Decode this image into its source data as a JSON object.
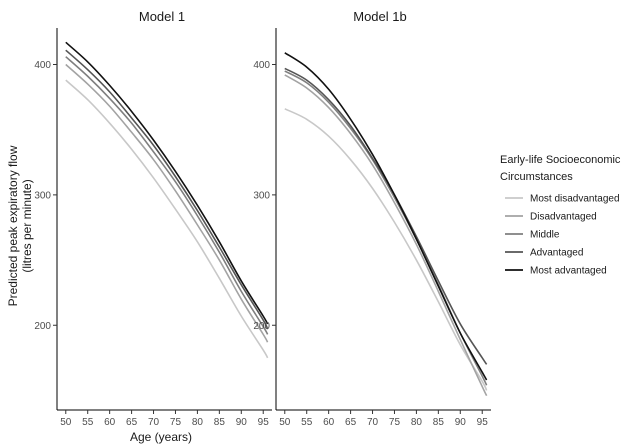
{
  "chart_data": {
    "type": "line",
    "ylabel_line1": "Predicted peak expiratory flow",
    "ylabel_line2": "(litres per minute)",
    "xlabel": "Age (years)",
    "xlim": [
      48,
      97
    ],
    "ylim": [
      135,
      428
    ],
    "x_ticks": [
      50,
      55,
      60,
      65,
      70,
      75,
      80,
      85,
      90,
      95
    ],
    "y_ticks": [
      200,
      300,
      400
    ],
    "grid": false,
    "legend": {
      "title_line1": "Early-life Socioeconomic",
      "title_line2": "Circumstances",
      "placement": "right",
      "entries": [
        {
          "label": "Most disadvantaged",
          "color": "#c8c8c8"
        },
        {
          "label": "Disadvantaged",
          "color": "#a3a3a3"
        },
        {
          "label": "Middle",
          "color": "#7f7f7f"
        },
        {
          "label": "Advantaged",
          "color": "#555555"
        },
        {
          "label": "Most advantaged",
          "color": "#111111"
        }
      ]
    },
    "panels": [
      {
        "title": "Model 1",
        "series": [
          {
            "name": "Most disadvantaged",
            "color": "#c8c8c8",
            "x": [
              50,
              55,
              60,
              65,
              70,
              75,
              80,
              85,
              90,
              95,
              96
            ],
            "y": [
              388,
              373,
              355,
              335,
              313,
              289,
              264,
              236,
              207,
              181,
              175
            ]
          },
          {
            "name": "Disadvantaged",
            "color": "#a3a3a3",
            "x": [
              50,
              55,
              60,
              65,
              70,
              75,
              80,
              85,
              90,
              95,
              96
            ],
            "y": [
              400,
              385,
              368,
              348,
              327,
              303,
              277,
              250,
              220,
              193,
              187
            ]
          },
          {
            "name": "Middle",
            "color": "#7f7f7f",
            "x": [
              50,
              55,
              60,
              65,
              70,
              75,
              80,
              85,
              90,
              95,
              96
            ],
            "y": [
              406,
              391,
              374,
              355,
              333,
              310,
              284,
              256,
              226,
              199,
              193
            ]
          },
          {
            "name": "Advantaged",
            "color": "#555555",
            "x": [
              50,
              55,
              60,
              65,
              70,
              75,
              80,
              85,
              90,
              95,
              96
            ],
            "y": [
              411,
              396,
              379,
              359,
              338,
              314,
              288,
              260,
              231,
              204,
              197
            ]
          },
          {
            "name": "Most advantaged",
            "color": "#111111",
            "x": [
              50,
              55,
              60,
              65,
              70,
              75,
              80,
              85,
              90,
              95,
              96
            ],
            "y": [
              417,
              402,
              384,
              364,
              342,
              318,
              292,
              264,
              234,
              207,
              201
            ]
          }
        ]
      },
      {
        "title": "Model 1b",
        "series": [
          {
            "name": "Most disadvantaged",
            "color": "#c8c8c8",
            "x": [
              50,
              55,
              60,
              65,
              70,
              75,
              80,
              85,
              90,
              95,
              96
            ],
            "y": [
              366,
              358,
              345,
              327,
              305,
              279,
              250,
              218,
              185,
              157,
              150
            ]
          },
          {
            "name": "Disadvantaged",
            "color": "#a3a3a3",
            "x": [
              50,
              55,
              60,
              65,
              70,
              75,
              80,
              85,
              90,
              95,
              96
            ],
            "y": [
              392,
              382,
              367,
              347,
              323,
              294,
              262,
              226,
              189,
              153,
              146
            ]
          },
          {
            "name": "Middle",
            "color": "#7f7f7f",
            "x": [
              50,
              55,
              60,
              65,
              70,
              75,
              80,
              85,
              90,
              95,
              96
            ],
            "y": [
              395,
              386,
              371,
              351,
              327,
              298,
              266,
              231,
              194,
              161,
              154
            ]
          },
          {
            "name": "Advantaged",
            "color": "#555555",
            "x": [
              50,
              55,
              60,
              65,
              70,
              75,
              80,
              85,
              90,
              95,
              96
            ],
            "y": [
              397,
              388,
              373,
              353,
              328,
              300,
              268,
              234,
              201,
              175,
              170
            ]
          },
          {
            "name": "Most advantaged",
            "color": "#111111",
            "x": [
              50,
              55,
              60,
              65,
              70,
              75,
              80,
              85,
              90,
              95,
              96
            ],
            "y": [
              409,
              398,
              381,
              358,
              331,
              300,
              266,
              230,
              194,
              164,
              158
            ]
          }
        ]
      }
    ]
  }
}
